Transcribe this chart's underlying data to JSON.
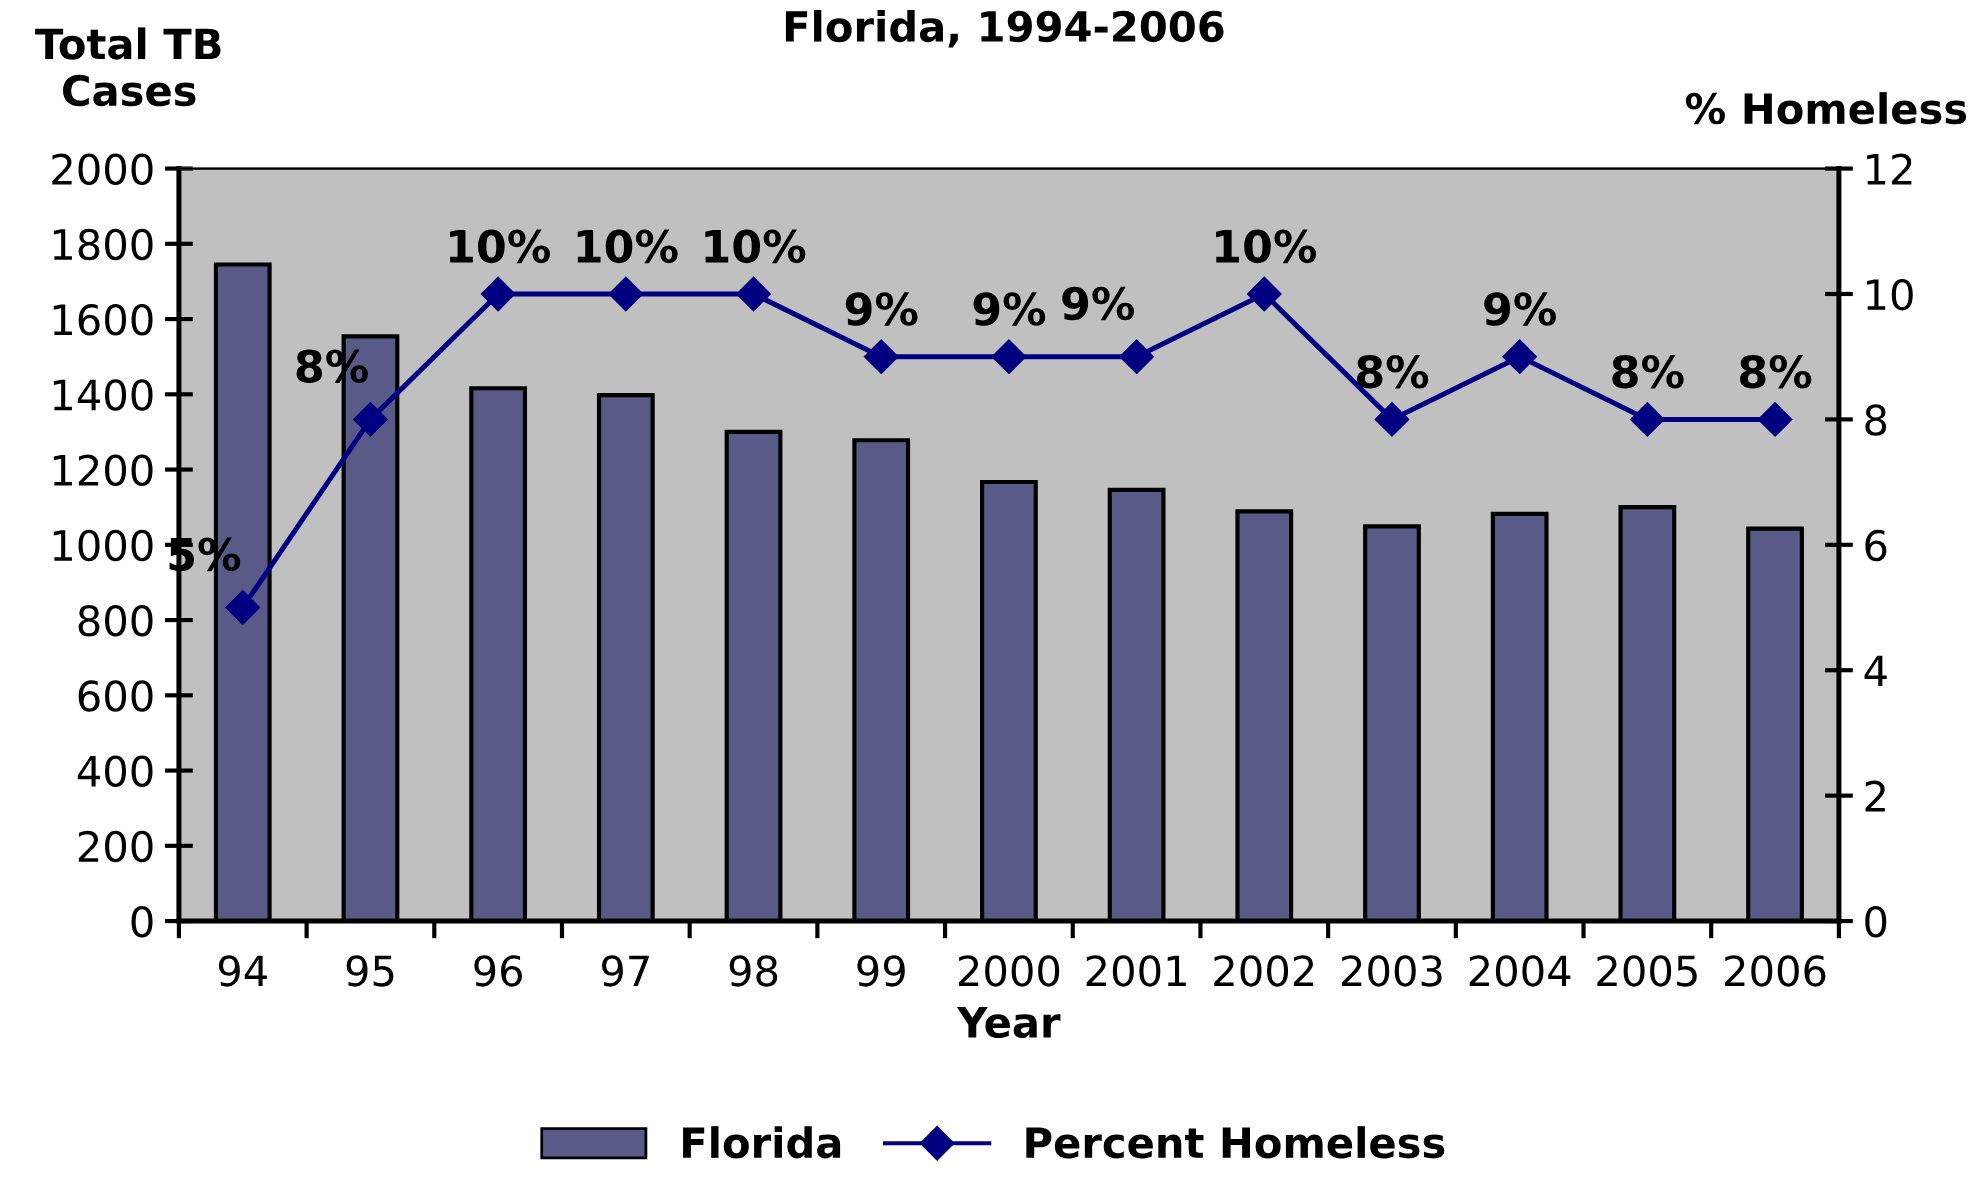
{
  "chart_data": {
    "type": "bar",
    "title": "Florida, 1994-2006",
    "xlabel": "Year",
    "ylabel": "Total TB\nCases",
    "y2label": "% Homeless",
    "categories": [
      "94",
      "95",
      "96",
      "97",
      "98",
      "99",
      "2000",
      "2001",
      "2002",
      "2003",
      "2004",
      "2005",
      "2006"
    ],
    "series": [
      {
        "name": "Florida",
        "color": "#5a5a88",
        "values": [
          1745,
          1554,
          1416,
          1398,
          1300,
          1278,
          1167,
          1146,
          1089,
          1049,
          1082,
          1100,
          1043
        ]
      },
      {
        "name": "Percent Homeless",
        "type": "line",
        "axis": "y2",
        "color": "#000080",
        "marker": "diamond",
        "values": [
          5,
          8,
          10,
          10,
          10,
          9,
          9,
          9,
          10,
          8,
          9,
          8,
          8
        ],
        "value_labels": [
          "5%",
          "8%",
          "10%",
          "10%",
          "10%",
          "9%",
          "9%",
          "9%",
          "10%",
          "8%",
          "9%",
          "8%",
          "8%"
        ]
      }
    ],
    "ylim": [
      0,
      2000
    ],
    "yticks": [
      0,
      200,
      400,
      600,
      800,
      1000,
      1200,
      1400,
      1600,
      1800,
      2000
    ],
    "y2lim": [
      0,
      12
    ],
    "y2ticks": [
      0,
      2,
      4,
      6,
      8,
      10,
      12
    ],
    "grid": false,
    "legend": "bottom"
  }
}
